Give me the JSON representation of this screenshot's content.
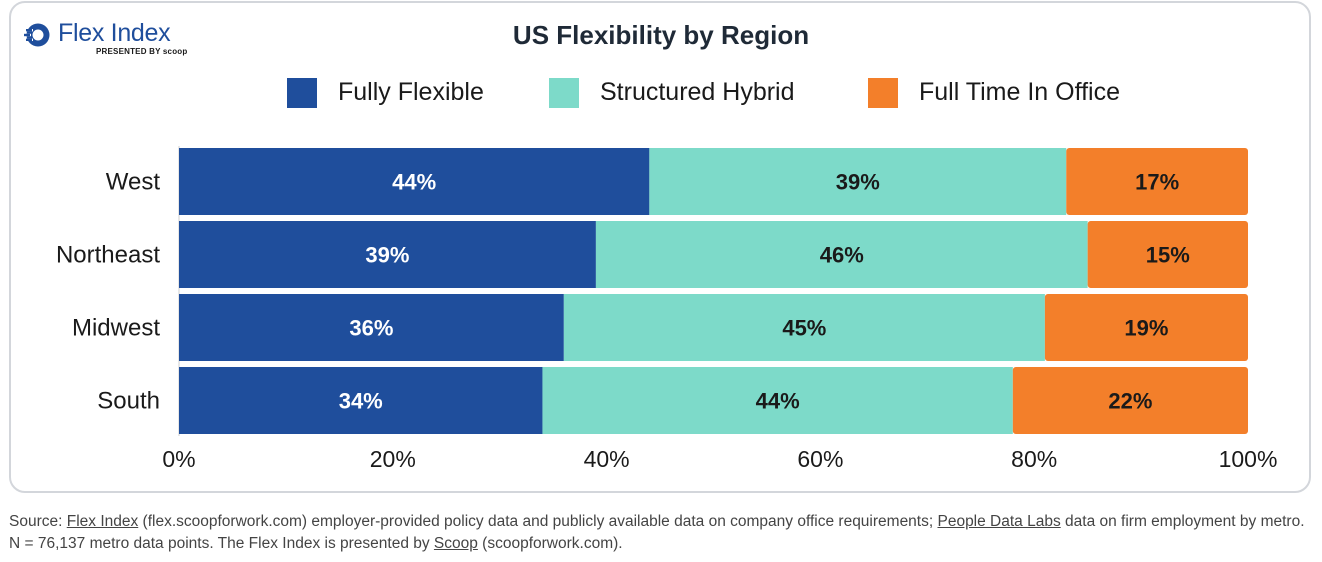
{
  "logo": {
    "name": "Flex Index",
    "presented_by": "PRESENTED BY scoop"
  },
  "chart_data": {
    "type": "bar",
    "orientation": "horizontal",
    "stacked": true,
    "title": "US Flexibility by Region",
    "categories": [
      "West",
      "Northeast",
      "Midwest",
      "South"
    ],
    "series": [
      {
        "name": "Fully Flexible",
        "color": "#1f4e9c",
        "label_color": "#ffffff",
        "values": [
          44,
          39,
          36,
          34
        ]
      },
      {
        "name": "Structured Hybrid",
        "color": "#7ddac9",
        "label_color": "#1a1a1a",
        "values": [
          39,
          46,
          45,
          44
        ]
      },
      {
        "name": "Full Time In Office",
        "color": "#f37f2a",
        "label_color": "#1a1a1a",
        "values": [
          17,
          15,
          19,
          22
        ]
      }
    ],
    "value_labels": [
      [
        "44%",
        "39%",
        "17%"
      ],
      [
        "39%",
        "46%",
        "15%"
      ],
      [
        "36%",
        "45%",
        "19%"
      ],
      [
        "34%",
        "44%",
        "22%"
      ]
    ],
    "xlim": [
      0,
      100
    ],
    "xticks": [
      0,
      20,
      40,
      60,
      80,
      100
    ],
    "xtick_labels": [
      "0%",
      "20%",
      "40%",
      "60%",
      "80%",
      "100%"
    ],
    "legend_position": "top",
    "grid": false
  },
  "footnote": {
    "prefix": "Source: ",
    "link1": "Flex Index",
    "text1": " (flex.scoopforwork.com) employer-provided policy data and publicly available data on company office requirements; ",
    "link2": "People Data Labs",
    "text2": " data on firm employment by metro. N = 76,137 metro data points. The Flex Index is presented by ",
    "link3": "Scoop",
    "text3": " (scoopforwork.com)."
  }
}
